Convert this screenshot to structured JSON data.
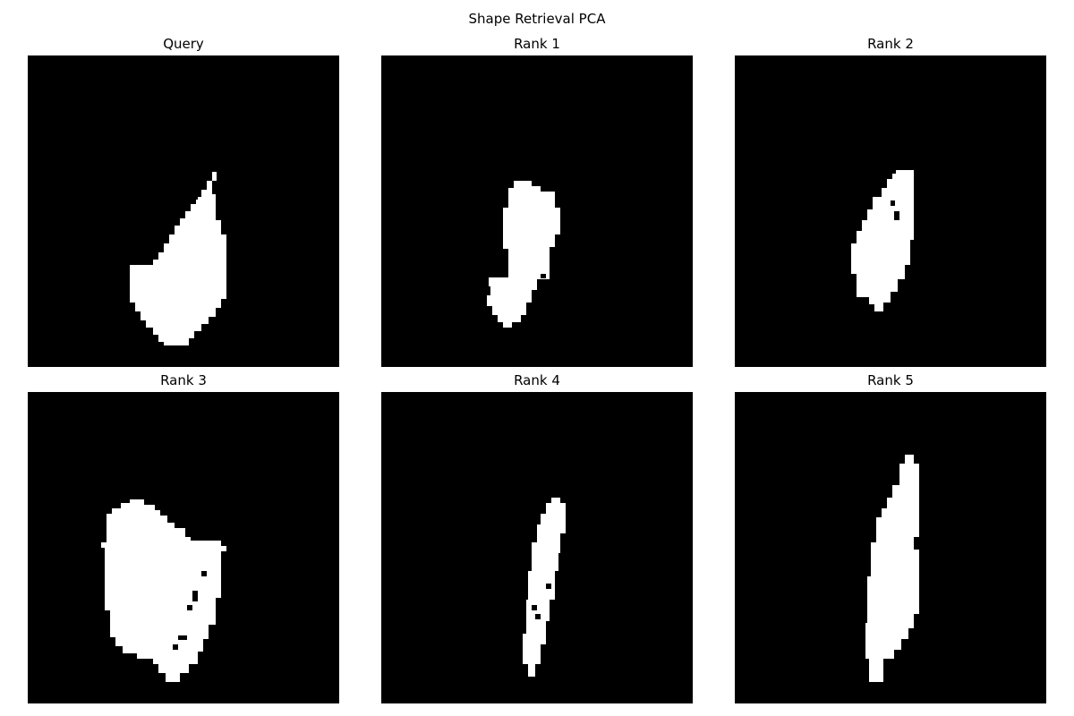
{
  "figure": {
    "title": "Shape Retrieval PCA",
    "background_color": "#ffffff",
    "panel_background_color": "#000000",
    "shape_color": "#ffffff"
  },
  "panels": [
    {
      "title": "Query",
      "shape": "query-blob"
    },
    {
      "title": "Rank 1",
      "shape": "rank1-blob"
    },
    {
      "title": "Rank 2",
      "shape": "rank2-blob"
    },
    {
      "title": "Rank 3",
      "shape": "rank3-blob"
    },
    {
      "title": "Rank 4",
      "shape": "rank4-blob"
    },
    {
      "title": "Rank 5",
      "shape": "rank5-blob"
    }
  ]
}
